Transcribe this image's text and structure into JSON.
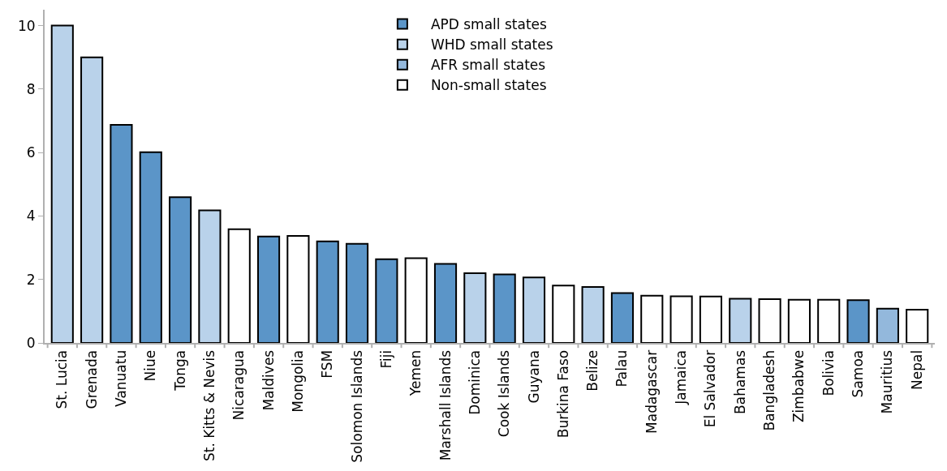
{
  "chart_data": {
    "type": "bar",
    "categories": [
      "St. Lucia",
      "Grenada",
      "Vanuatu",
      "Niue",
      "Tonga",
      "St. Kitts & Nevis",
      "Nicaragua",
      "Maldives",
      "Mongolia",
      "FSM",
      "Solomon Islands",
      "Fiji",
      "Yemen",
      "Marshall Islands",
      "Dominica",
      "Cook Islands",
      "Guyana",
      "Burkina Faso",
      "Belize",
      "Palau",
      "Madagascar",
      "Jamaica",
      "El Salvador",
      "Bahamas",
      "Bangladesh",
      "Zimbabwe",
      "Bolivia",
      "Samoa",
      "Mauritius",
      "Nepal"
    ],
    "series": [
      {
        "name": "APD small states",
        "color": "#5b95c8",
        "values": [
          null,
          null,
          6.87,
          6.01,
          4.59,
          null,
          null,
          3.35,
          null,
          3.2,
          3.12,
          2.64,
          null,
          2.49,
          null,
          2.16,
          null,
          null,
          null,
          1.57,
          null,
          null,
          null,
          null,
          null,
          null,
          null,
          1.35,
          null,
          null
        ]
      },
      {
        "name": "WHD small states",
        "color": "#b9d2ea",
        "values": [
          10,
          9.0,
          null,
          null,
          null,
          4.18,
          null,
          null,
          null,
          null,
          null,
          null,
          null,
          null,
          2.2,
          null,
          2.06,
          null,
          1.76,
          null,
          null,
          null,
          null,
          1.39,
          null,
          null,
          null,
          null,
          null,
          null
        ]
      },
      {
        "name": "AFR small states",
        "color": "#93b8dc",
        "values": [
          null,
          null,
          null,
          null,
          null,
          null,
          null,
          null,
          null,
          null,
          null,
          null,
          null,
          null,
          null,
          null,
          null,
          null,
          null,
          null,
          null,
          null,
          null,
          null,
          null,
          null,
          null,
          null,
          1.08,
          null
        ]
      },
      {
        "name": "Non-small states",
        "color": "#ffffff",
        "values": [
          null,
          null,
          null,
          null,
          null,
          null,
          3.58,
          null,
          3.37,
          null,
          null,
          null,
          2.67,
          null,
          null,
          null,
          null,
          1.81,
          null,
          null,
          1.49,
          1.47,
          1.46,
          null,
          1.38,
          1.36,
          1.36,
          null,
          null,
          1.05
        ]
      }
    ],
    "ylim": [
      0,
      10.5
    ],
    "yticks": [
      0,
      2,
      4,
      6,
      8,
      10
    ],
    "grid": false,
    "legend": "top"
  }
}
